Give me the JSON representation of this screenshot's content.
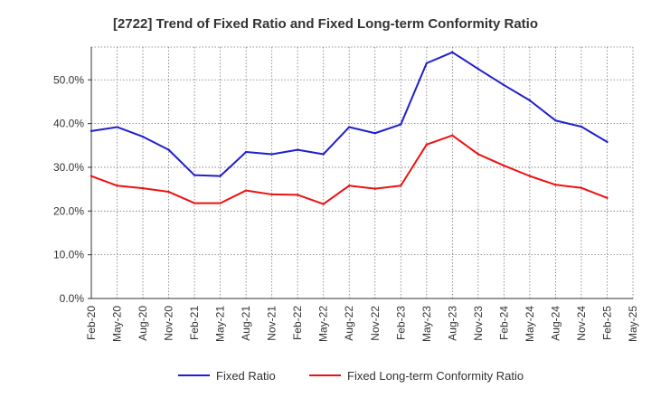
{
  "chart_data": {
    "type": "line",
    "title": "[2722]  Trend of Fixed Ratio and Fixed Long-term Conformity Ratio",
    "xlabel": "",
    "ylabel": "",
    "ylim": [
      0,
      57.5
    ],
    "y_ticks": [
      "0.0%",
      "10.0%",
      "20.0%",
      "30.0%",
      "40.0%",
      "50.0%"
    ],
    "y_tick_values": [
      0,
      10,
      20,
      30,
      40,
      50
    ],
    "x_ticks": [
      "Feb-20",
      "May-20",
      "Aug-20",
      "Nov-20",
      "Feb-21",
      "May-21",
      "Aug-21",
      "Nov-21",
      "Feb-22",
      "May-22",
      "Aug-22",
      "Nov-22",
      "Feb-23",
      "May-23",
      "Aug-23",
      "Nov-23",
      "Feb-24",
      "May-24",
      "Aug-24",
      "Nov-24",
      "Feb-25",
      "May-25"
    ],
    "grid": true,
    "legend_position": "bottom",
    "series": [
      {
        "name": "Fixed Ratio",
        "color": "#1f1fcc",
        "values": [
          38.3,
          39.2,
          37.0,
          34.0,
          28.2,
          28.0,
          33.5,
          33.0,
          34.0,
          33.0,
          39.2,
          37.8,
          39.8,
          53.8,
          56.3,
          52.5,
          48.8,
          45.3,
          40.7,
          39.3,
          35.8
        ]
      },
      {
        "name": "Fixed Long-term Conformity Ratio",
        "color": "#ee1111",
        "values": [
          28.0,
          25.8,
          25.2,
          24.4,
          21.8,
          21.8,
          24.7,
          23.8,
          23.7,
          21.6,
          25.8,
          25.1,
          25.8,
          35.2,
          37.3,
          33.0,
          30.4,
          28.0,
          26.0,
          25.3,
          23.0
        ]
      }
    ]
  }
}
